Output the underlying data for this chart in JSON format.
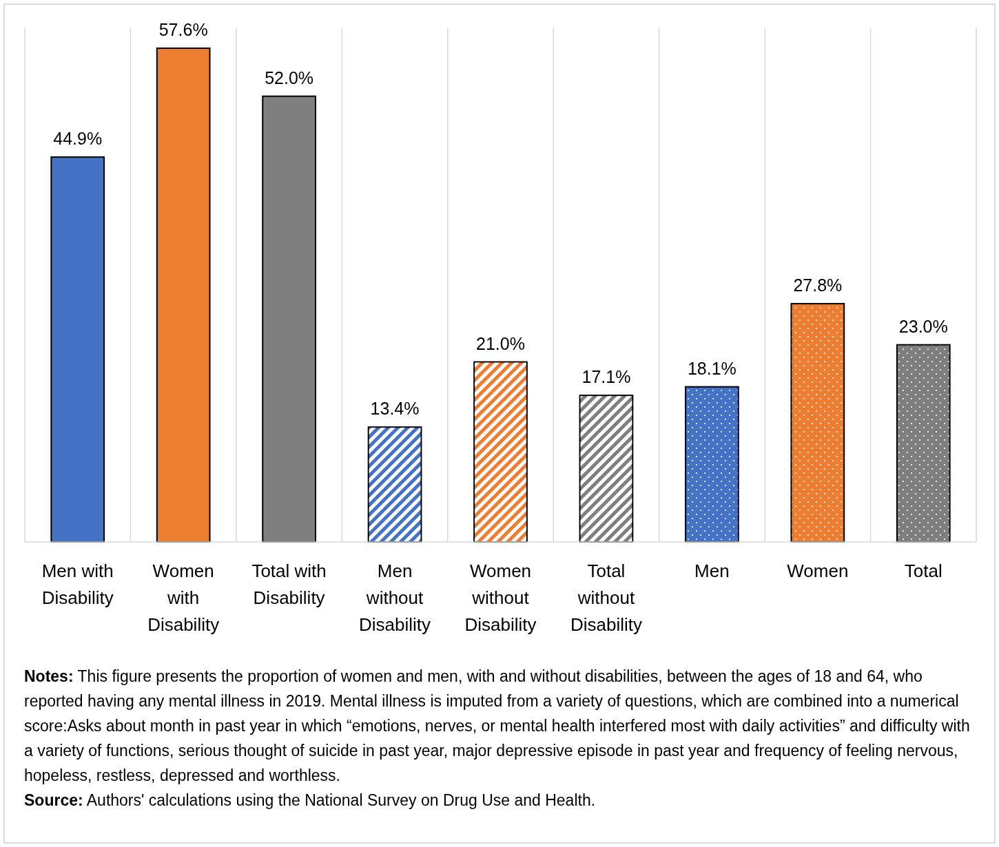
{
  "chart_data": {
    "type": "bar",
    "categories": [
      "Men with Disability",
      "Women with Disability",
      "Total with Disability",
      "Men without Disability",
      "Women without Disability",
      "Total without Disability",
      "Men",
      "Women",
      "Total"
    ],
    "values": [
      44.9,
      57.6,
      52.0,
      13.4,
      21.0,
      17.1,
      18.1,
      27.8,
      23.0
    ],
    "value_labels": [
      "44.9%",
      "57.6%",
      "52.0%",
      "13.4%",
      "21.0%",
      "17.1%",
      "18.1%",
      "27.8%",
      "23.0%"
    ],
    "colors": [
      "#4472c4",
      "#ed7d31",
      "#7f7f7f",
      "#4472c4",
      "#ed7d31",
      "#7f7f7f",
      "#4472c4",
      "#ed7d31",
      "#7f7f7f"
    ],
    "grid": "x",
    "annotations": [
      "Notes: This figure presents the proportion of women and men, with and without disabilities, between the ages of 18 and 64, who reported having any mental illness in 2019. Mental illness is imputed from a variety of questions, which are combined into a numerical score:Asks about month in past year in which “emotions, nerves, or mental health interfered most with daily activities” and difficulty with a variety of functions, serious thought of suicide in past year, major depressive episode in past year and frequency of feeling nervous, hopeless, restless, depressed and worthless.",
      "Source: Authors' calculations using the National Survey on Drug Use and Health."
    ]
  }
}
